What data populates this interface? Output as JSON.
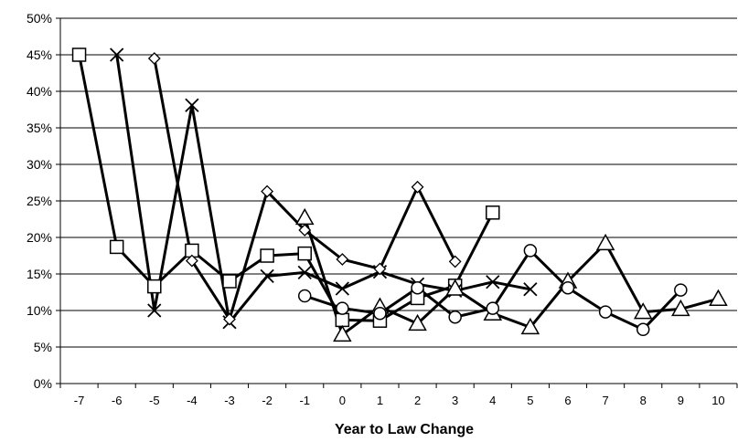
{
  "chart_data": {
    "type": "line",
    "title": "",
    "xlabel": "Year to Law Change",
    "ylabel": "",
    "x_ticks": [
      "-7",
      "-6",
      "-5",
      "-4",
      "-3",
      "-2",
      "-1",
      "0",
      "1",
      "2",
      "3",
      "4",
      "5",
      "6",
      "7",
      "8",
      "9",
      "10"
    ],
    "y_ticks": [
      "0%",
      "5%",
      "10%",
      "15%",
      "20%",
      "25%",
      "30%",
      "35%",
      "40%",
      "45%",
      "50%"
    ],
    "ylim": [
      0,
      50
    ],
    "grid": "horizontal",
    "legend": "none",
    "series": [
      {
        "marker": "square",
        "x": [
          -7,
          -6,
          -5,
          -4,
          -3,
          -2,
          -1,
          0,
          1,
          2,
          3,
          4
        ],
        "values": [
          45.0,
          18.7,
          13.3,
          18.2,
          14.0,
          17.5,
          17.8,
          8.7,
          8.6,
          11.7,
          13.4,
          23.4
        ]
      },
      {
        "marker": "x",
        "x": [
          -6,
          -5,
          -4,
          -3,
          -2,
          -1,
          0,
          1,
          2,
          3,
          4,
          5
        ],
        "values": [
          45.0,
          10.0,
          38.1,
          8.4,
          14.7,
          15.2,
          13.0,
          15.3,
          13.6,
          12.7,
          13.9,
          12.9
        ]
      },
      {
        "marker": "diamond",
        "x": [
          -5,
          -4,
          -3,
          -2,
          -1,
          0,
          1,
          2,
          3
        ],
        "values": [
          44.5,
          16.8,
          8.8,
          26.3,
          21.0,
          17.0,
          15.7,
          26.9,
          16.7
        ]
      },
      {
        "marker": "triangle",
        "x": [
          -1,
          0,
          1,
          2,
          3,
          4,
          5,
          6,
          7,
          8,
          9,
          10
        ],
        "values": [
          22.7,
          6.7,
          10.5,
          8.2,
          13.0,
          9.6,
          7.7,
          14.0,
          19.2,
          9.8,
          10.2,
          11.6
        ]
      },
      {
        "marker": "circle",
        "x": [
          -1,
          0,
          1,
          2,
          3,
          4,
          5,
          6,
          7,
          8,
          9
        ],
        "values": [
          12.0,
          10.3,
          9.6,
          13.1,
          9.1,
          10.3,
          18.2,
          13.1,
          9.8,
          7.4,
          12.8
        ]
      }
    ]
  }
}
